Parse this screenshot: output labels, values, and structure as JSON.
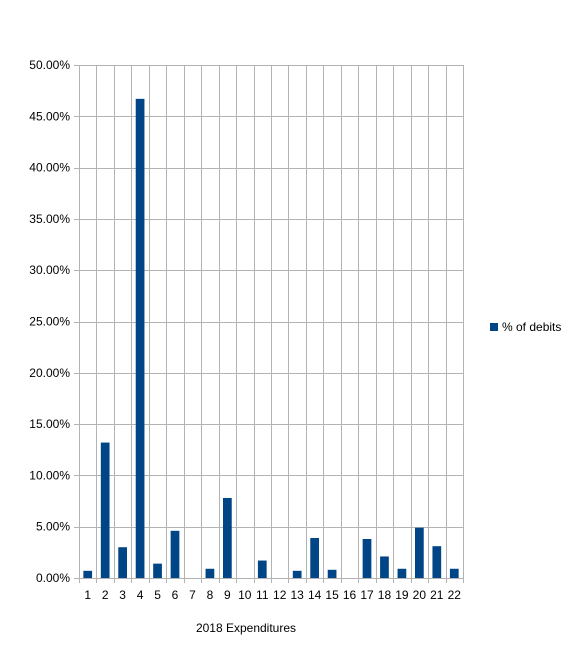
{
  "chart_data": {
    "type": "bar",
    "categories": [
      "1",
      "2",
      "3",
      "4",
      "5",
      "6",
      "7",
      "8",
      "9",
      "10",
      "11",
      "12",
      "13",
      "14",
      "15",
      "16",
      "17",
      "18",
      "19",
      "20",
      "21",
      "22"
    ],
    "series": [
      {
        "name": "% of debits",
        "values": [
          0.7,
          13.2,
          3.0,
          46.7,
          1.4,
          4.6,
          0.0,
          0.9,
          7.8,
          0.0,
          1.7,
          0.0,
          0.7,
          3.9,
          0.8,
          0.0,
          3.8,
          2.1,
          0.9,
          4.9,
          3.1,
          0.9
        ],
        "color": "#004586"
      }
    ],
    "title": "",
    "xlabel": "2018 Expenditures",
    "ylabel": "",
    "ylim": [
      0,
      50
    ],
    "yticks": [
      "0.00%",
      "5.00%",
      "10.00%",
      "15.00%",
      "20.00%",
      "25.00%",
      "30.00%",
      "35.00%",
      "40.00%",
      "45.00%",
      "50.00%"
    ],
    "grid": true,
    "grid_color": "#b3b3b3",
    "legend_position": "right"
  }
}
